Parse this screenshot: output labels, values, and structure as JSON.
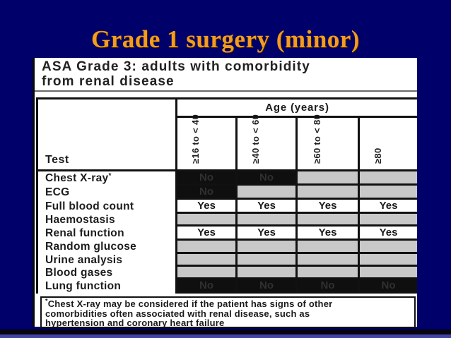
{
  "slide": {
    "title": "Grade 1 surgery (minor)",
    "colors": {
      "background": "#00006B",
      "title_orange": "#F39C1F",
      "cell_gray": "#C8C8C8",
      "cell_dark": "#0F0F0F",
      "bottom_black_band": "#06060C",
      "bottom_blue_band": "#4343A7"
    }
  },
  "panel": {
    "heading_line1": "ASA Grade 3: adults with comorbidity",
    "heading_line2": "from renal disease",
    "table": {
      "corner_label": "Test",
      "age_group_header": "Age (years)",
      "age_columns": [
        "≥16 to < 40",
        "≥40 to < 60",
        "≥60 to < 80",
        "≥80"
      ],
      "cell_text": {
        "yes": "Yes",
        "no": "No",
        "blank": ""
      },
      "rows": [
        {
          "label": "Chest X-ray",
          "marker": "*",
          "cells": [
            "no",
            "no",
            "blank",
            "blank"
          ]
        },
        {
          "label": "ECG",
          "cells": [
            "no",
            "blank",
            "blank",
            "blank"
          ]
        },
        {
          "label": "Full blood count",
          "cells": [
            "yes",
            "yes",
            "yes",
            "yes"
          ]
        },
        {
          "label": "Haemostasis",
          "cells": [
            "blank",
            "blank",
            "blank",
            "blank"
          ]
        },
        {
          "label": "Renal function",
          "cells": [
            "yes",
            "yes",
            "yes",
            "yes"
          ]
        },
        {
          "label": "Random glucose",
          "cells": [
            "blank",
            "blank",
            "blank",
            "blank"
          ]
        },
        {
          "label": "Urine analysis",
          "cells": [
            "blank",
            "blank",
            "blank",
            "blank"
          ]
        },
        {
          "label": "Blood gases",
          "cells": [
            "blank",
            "blank",
            "blank",
            "blank"
          ]
        },
        {
          "label": "Lung function",
          "cells": [
            "no",
            "no",
            "no",
            "no"
          ]
        }
      ]
    },
    "footnote": {
      "marker": "*",
      "lines": [
        "Chest X-ray may be considered if the patient has signs of other",
        "comorbidities often associated with renal disease, such as",
        "hypertension and coronary heart failure"
      ]
    }
  }
}
